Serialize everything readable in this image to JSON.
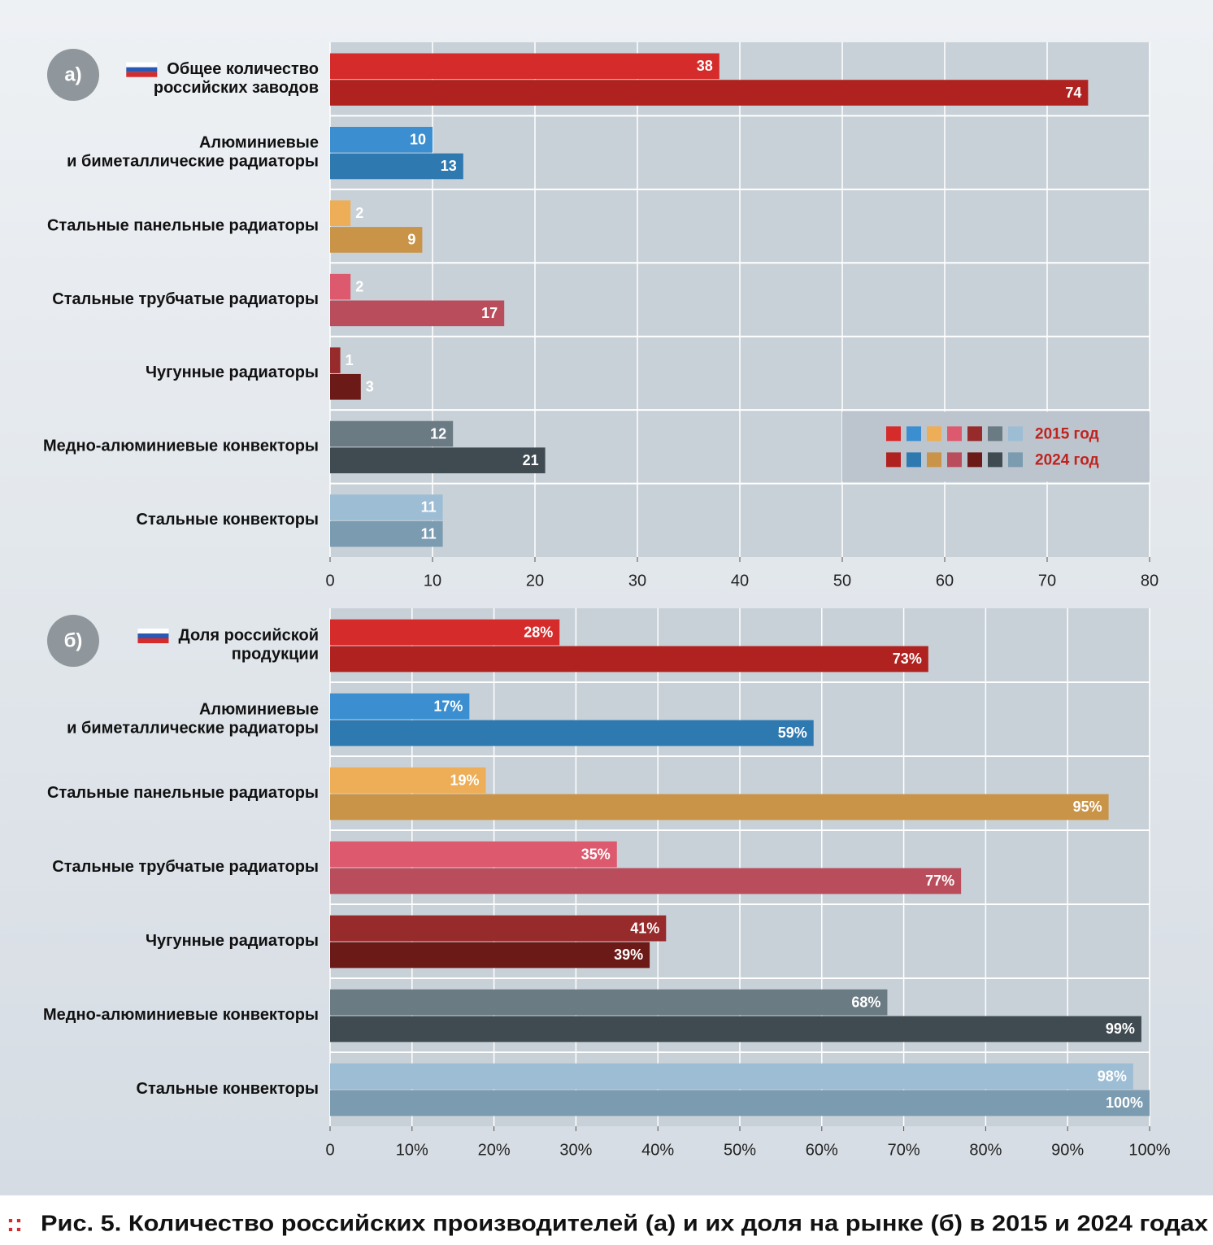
{
  "chart_data": [
    {
      "type": "bar",
      "orientation": "horizontal",
      "panel_label": "а)",
      "categories": [
        [
          "Общее количество",
          "российских заводов"
        ],
        [
          "Алюминиевые",
          "и биметаллические радиаторы"
        ],
        [
          "Стальные панельные радиаторы"
        ],
        [
          "Стальные трубчатые радиаторы"
        ],
        [
          "Чугунные радиаторы"
        ],
        [
          "Медно-алюминиевые конвекторы"
        ],
        [
          "Стальные конвекторы"
        ]
      ],
      "series": [
        {
          "name": "2015 год",
          "colors": [
            "#d52b2b",
            "#3b8fd0",
            "#edae57",
            "#dd5a6e",
            "#972a2b",
            "#6b7b84",
            "#9dbdd4"
          ],
          "values": [
            38,
            10,
            2,
            2,
            1,
            12,
            11
          ]
        },
        {
          "name": "2024 год",
          "colors": [
            "#b0221f",
            "#2f79b1",
            "#c99447",
            "#b94d5c",
            "#6b1a17",
            "#3f4a51",
            "#7b9bb1"
          ],
          "values": [
            74,
            13,
            9,
            17,
            3,
            21,
            11
          ]
        }
      ],
      "xlim": [
        0,
        80
      ],
      "xticks": [
        0,
        10,
        20,
        30,
        40,
        50,
        60,
        70,
        80
      ],
      "grid": true,
      "legend": "lower right"
    },
    {
      "type": "bar",
      "orientation": "horizontal",
      "panel_label": "б)",
      "categories": [
        [
          "Доля российской",
          "продукции"
        ],
        [
          "Алюминиевые",
          "и биметаллические радиаторы"
        ],
        [
          "Стальные панельные радиаторы"
        ],
        [
          "Стальные трубчатые радиаторы"
        ],
        [
          "Чугунные радиаторы"
        ],
        [
          "Медно-алюминиевые конвекторы"
        ],
        [
          "Стальные конвекторы"
        ]
      ],
      "series": [
        {
          "name": "2015 год",
          "colors": [
            "#d52b2b",
            "#3b8fd0",
            "#edae57",
            "#dd5a6e",
            "#972a2b",
            "#6b7b84",
            "#9dbdd4"
          ],
          "values": [
            28,
            17,
            19,
            35,
            41,
            68,
            98
          ],
          "value_labels": [
            "28%",
            "17%",
            "19%",
            "35%",
            "41%",
            "68%",
            "98%"
          ]
        },
        {
          "name": "2024 год",
          "colors": [
            "#b0221f",
            "#2f79b1",
            "#c99447",
            "#b94d5c",
            "#6b1a17",
            "#3f4a51",
            "#7b9bb1"
          ],
          "values": [
            73,
            59,
            95,
            77,
            39,
            99,
            100
          ],
          "value_labels": [
            "73%",
            "59%",
            "95%",
            "77%",
            "39%",
            "99%",
            "100%"
          ]
        }
      ],
      "xlim": [
        0,
        100
      ],
      "xticks": [
        0,
        {
          "value": 10,
          "label": "10%"
        },
        {
          "value": 20,
          "label": "20%"
        },
        {
          "value": 30,
          "label": "30%"
        },
        {
          "value": 40,
          "label": "40%"
        },
        {
          "value": 50,
          "label": "50%"
        },
        {
          "value": 60,
          "label": "60%"
        },
        {
          "value": 70,
          "label": "70%"
        },
        {
          "value": 80,
          "label": "80%"
        },
        {
          "value": 90,
          "label": "90%"
        },
        {
          "value": 100,
          "label": "100%"
        }
      ],
      "grid": true
    }
  ],
  "caption": "Рис. 5. Количество российских производителей (а) и их доля на рынке (б) в 2015 и 2024 годах"
}
